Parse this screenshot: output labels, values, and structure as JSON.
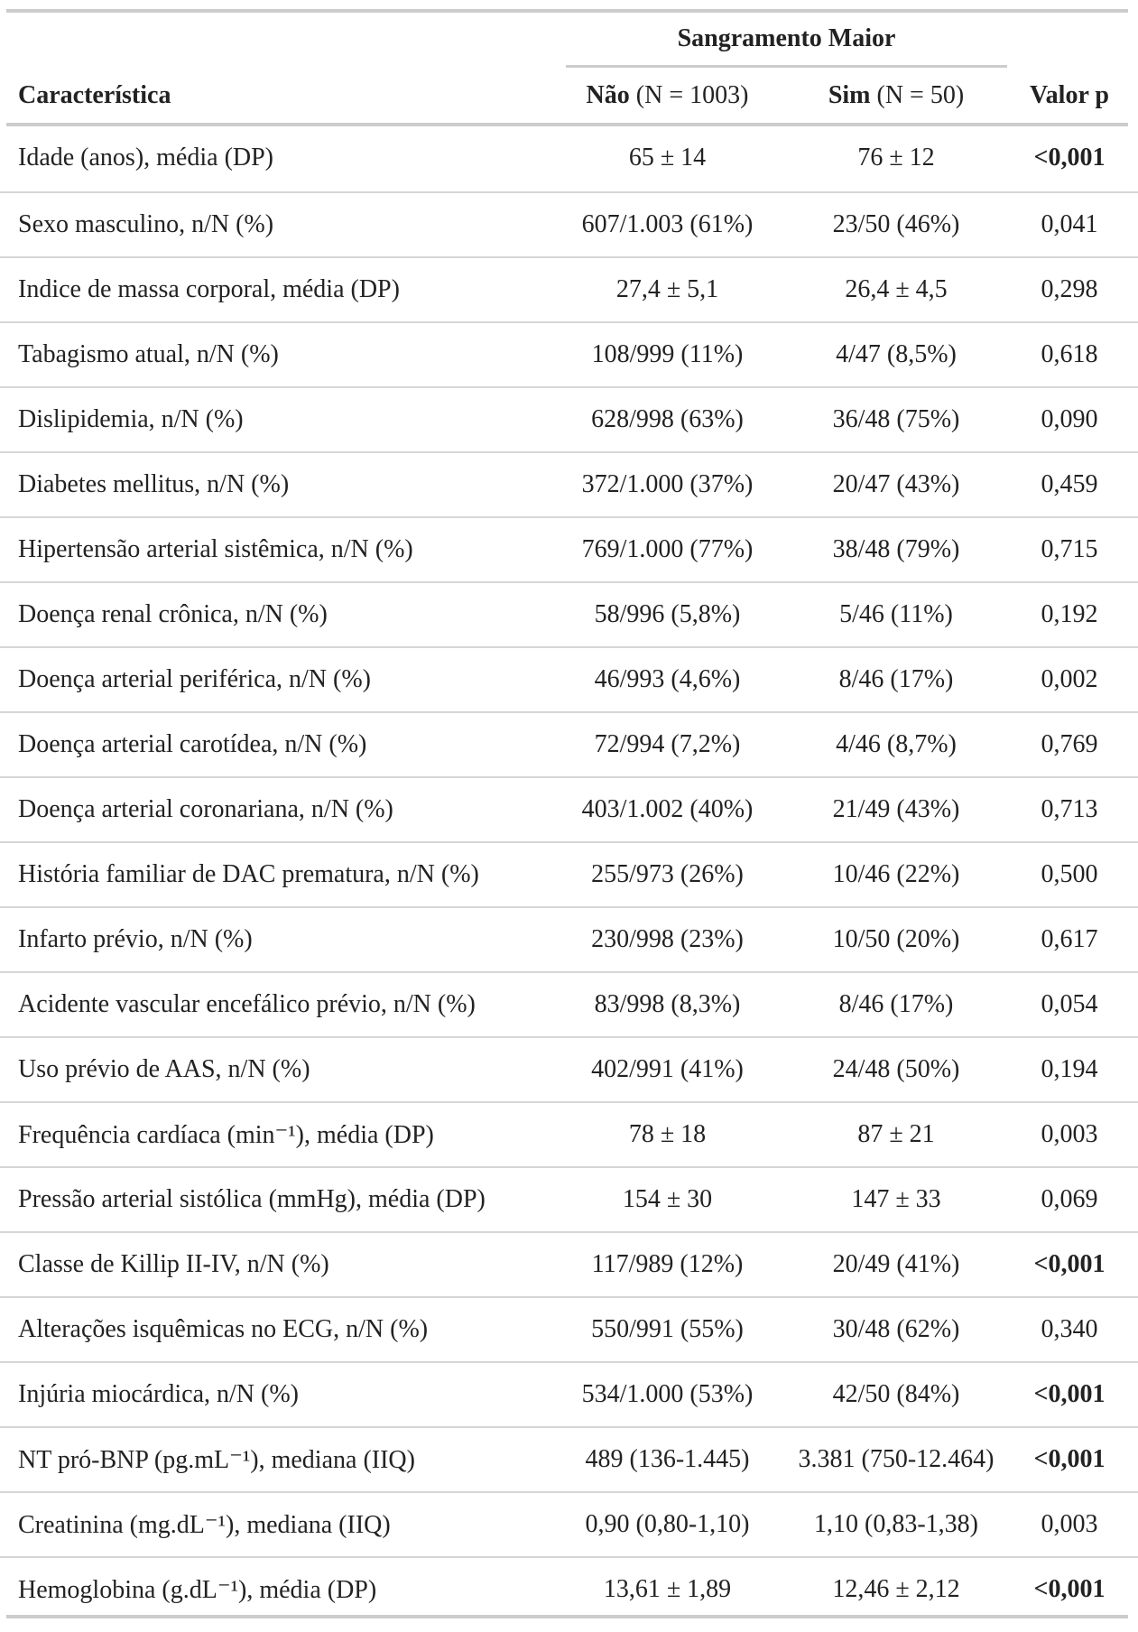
{
  "table": {
    "group_header": "Sangramento Maior",
    "headers": {
      "characteristic": "Característica",
      "no_label": "Não",
      "no_n": "(N = 1003)",
      "yes_label": "Sim",
      "yes_n": "(N = 50)",
      "pvalue": "Valor p"
    },
    "rows": [
      {
        "label": "Idade (anos), média (DP)",
        "no": "65 ± 14",
        "yes": "76 ± 12",
        "p": "<0,001",
        "p_bold": true
      },
      {
        "label": "Sexo masculino, n/N (%)",
        "no": "607/1.003 (61%)",
        "yes": "23/50 (46%)",
        "p": "0,041",
        "p_bold": false
      },
      {
        "label": "Indice de massa corporal, média (DP)",
        "no": "27,4 ± 5,1",
        "yes": "26,4 ± 4,5",
        "p": "0,298",
        "p_bold": false
      },
      {
        "label": "Tabagismo atual, n/N (%)",
        "no": "108/999 (11%)",
        "yes": "4/47 (8,5%)",
        "p": "0,618",
        "p_bold": false
      },
      {
        "label": "Dislipidemia, n/N (%)",
        "no": "628/998 (63%)",
        "yes": "36/48 (75%)",
        "p": "0,090",
        "p_bold": false
      },
      {
        "label": "Diabetes mellitus, n/N (%)",
        "no": "372/1.000 (37%)",
        "yes": "20/47 (43%)",
        "p": "0,459",
        "p_bold": false
      },
      {
        "label": "Hipertensão arterial sistêmica, n/N (%)",
        "no": "769/1.000 (77%)",
        "yes": "38/48 (79%)",
        "p": "0,715",
        "p_bold": false
      },
      {
        "label": "Doença renal crônica, n/N (%)",
        "no": "58/996 (5,8%)",
        "yes": "5/46 (11%)",
        "p": "0,192",
        "p_bold": false
      },
      {
        "label": "Doença arterial periférica, n/N (%)",
        "no": "46/993 (4,6%)",
        "yes": "8/46 (17%)",
        "p": "0,002",
        "p_bold": false
      },
      {
        "label": "Doença arterial carotídea, n/N (%)",
        "no": "72/994 (7,2%)",
        "yes": "4/46 (8,7%)",
        "p": "0,769",
        "p_bold": false
      },
      {
        "label": "Doença arterial coronariana, n/N (%)",
        "no": "403/1.002 (40%)",
        "yes": "21/49 (43%)",
        "p": "0,713",
        "p_bold": false
      },
      {
        "label": "História familiar de DAC prematura, n/N (%)",
        "no": "255/973 (26%)",
        "yes": "10/46 (22%)",
        "p": "0,500",
        "p_bold": false
      },
      {
        "label": "Infarto prévio, n/N (%)",
        "no": "230/998 (23%)",
        "yes": "10/50 (20%)",
        "p": "0,617",
        "p_bold": false
      },
      {
        "label": "Acidente vascular encefálico prévio, n/N (%)",
        "no": "83/998 (8,3%)",
        "yes": "8/46 (17%)",
        "p": "0,054",
        "p_bold": false
      },
      {
        "label": "Uso prévio de AAS, n/N (%)",
        "no": "402/991 (41%)",
        "yes": "24/48 (50%)",
        "p": "0,194",
        "p_bold": false
      },
      {
        "label": "Frequência cardíaca (min⁻¹), média (DP)",
        "no": "78 ± 18",
        "yes": "87 ± 21",
        "p": "0,003",
        "p_bold": false
      },
      {
        "label": "Pressão arterial sistólica (mmHg), média (DP)",
        "no": "154 ± 30",
        "yes": "147 ± 33",
        "p": "0,069",
        "p_bold": false
      },
      {
        "label": "Classe de Killip II-IV, n/N (%)",
        "no": "117/989 (12%)",
        "yes": "20/49 (41%)",
        "p": "<0,001",
        "p_bold": true
      },
      {
        "label": "Alterações isquêmicas no ECG, n/N (%)",
        "no": "550/991 (55%)",
        "yes": "30/48 (62%)",
        "p": "0,340",
        "p_bold": false
      },
      {
        "label": "Injúria miocárdica, n/N (%)",
        "no": "534/1.000 (53%)",
        "yes": "42/50 (84%)",
        "p": "<0,001",
        "p_bold": true
      },
      {
        "label": "NT pró-BNP (pg.mL⁻¹), mediana (IIQ)",
        "no": "489 (136-1.445)",
        "yes": "3.381 (750-12.464)",
        "p": "<0,001",
        "p_bold": true
      },
      {
        "label": "Creatinina (mg.dL⁻¹), mediana (IIQ)",
        "no": "0,90 (0,80-1,10)",
        "yes": "1,10 (0,83-1,38)",
        "p": "0,003",
        "p_bold": false
      },
      {
        "label": "Hemoglobina (g.dL⁻¹), média (DP)",
        "no": "13,61 ± 1,89",
        "yes": "12,46 ± 2,12",
        "p": "<0,001",
        "p_bold": true
      }
    ]
  }
}
